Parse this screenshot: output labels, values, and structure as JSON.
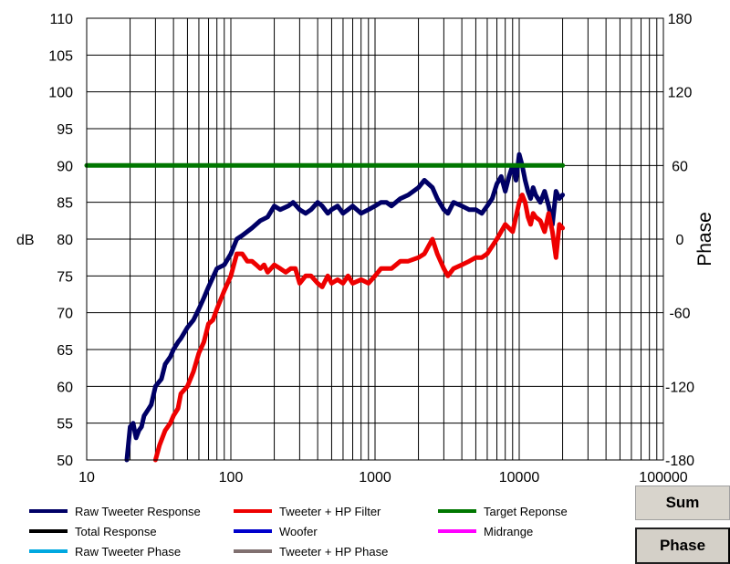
{
  "chart_data": {
    "type": "line",
    "xlabel": "",
    "ylabel": "dB",
    "y2label": "Phase",
    "xscale": "log",
    "xlim": [
      10,
      100000
    ],
    "ylim": [
      50,
      110
    ],
    "y2lim": [
      -180,
      180
    ],
    "grid": true,
    "x_ticks": [
      "10",
      "100",
      "1000",
      "10000",
      "100000"
    ],
    "y_ticks": [
      "50",
      "55",
      "60",
      "65",
      "70",
      "75",
      "80",
      "85",
      "90",
      "95",
      "100",
      "105",
      "110"
    ],
    "y2_ticks": [
      "-180",
      "-120",
      "-60",
      "0",
      "60",
      "120",
      "180"
    ],
    "series": [
      {
        "name": "Raw Tweeter Response",
        "color": "#000066",
        "x": [
          19,
          20,
          21,
          22,
          23,
          24,
          25,
          27,
          28,
          30,
          33,
          35,
          38,
          40,
          43,
          45,
          50,
          55,
          60,
          65,
          70,
          80,
          90,
          100,
          110,
          120,
          140,
          160,
          180,
          200,
          220,
          250,
          270,
          300,
          330,
          360,
          400,
          430,
          470,
          500,
          550,
          600,
          650,
          700,
          800,
          900,
          1000,
          1100,
          1200,
          1300,
          1500,
          1700,
          2000,
          2200,
          2500,
          2700,
          3000,
          3200,
          3500,
          4000,
          4500,
          5000,
          5500,
          6000,
          6500,
          7000,
          7500,
          8000,
          8500,
          9000,
          9500,
          10000,
          10500,
          11000,
          11500,
          12000,
          12500,
          13000,
          14000,
          15000,
          16000,
          17000,
          18000,
          19000,
          20000
        ],
        "y": [
          50,
          54.5,
          55,
          53,
          54,
          54.5,
          56,
          57,
          57.5,
          60,
          61,
          63,
          64,
          65,
          66,
          66.5,
          68,
          69,
          70.5,
          72,
          73.5,
          76,
          76.5,
          78,
          80,
          80.5,
          81.5,
          82.5,
          83,
          84.5,
          84,
          84.5,
          85,
          84,
          83.5,
          84,
          85,
          84.5,
          83.5,
          84,
          84.5,
          83.5,
          84,
          84.5,
          83.5,
          84,
          84.5,
          85,
          85,
          84.5,
          85.5,
          86,
          87,
          88,
          87,
          85.5,
          84,
          83.5,
          85,
          84.5,
          84,
          84,
          83.5,
          84.5,
          85.5,
          87.5,
          88.5,
          86.5,
          88.5,
          90,
          88,
          91.5,
          90,
          88,
          86.5,
          85.5,
          87,
          86,
          85,
          86.5,
          84.5,
          82,
          86.5,
          85.5,
          86
        ]
      },
      {
        "name": "Tweeter + HP Filter",
        "color": "#ee0000",
        "x": [
          30,
          32,
          35,
          38,
          40,
          43,
          45,
          50,
          55,
          60,
          65,
          70,
          75,
          80,
          90,
          100,
          110,
          120,
          130,
          140,
          150,
          160,
          170,
          180,
          200,
          220,
          240,
          260,
          280,
          300,
          330,
          360,
          400,
          430,
          470,
          500,
          550,
          600,
          650,
          700,
          800,
          900,
          1000,
          1100,
          1200,
          1300,
          1500,
          1700,
          2000,
          2200,
          2500,
          2700,
          3000,
          3200,
          3500,
          4000,
          4500,
          5000,
          5500,
          6000,
          7000,
          8000,
          9000,
          10000,
          10500,
          11000,
          11500,
          12000,
          12500,
          13000,
          14000,
          15000,
          16000,
          17000,
          18000,
          19000,
          20000
        ],
        "y": [
          50,
          52,
          54,
          55,
          56,
          57,
          59,
          60,
          62,
          64.5,
          66,
          68.5,
          69,
          70.5,
          73,
          75,
          78,
          78,
          77,
          77,
          76.5,
          76,
          76.5,
          75.5,
          76.5,
          76,
          75.5,
          76,
          76,
          74,
          75,
          75,
          74,
          73.5,
          75,
          74,
          74.5,
          74,
          75,
          74,
          74.5,
          74,
          75,
          76,
          76,
          76,
          77,
          77,
          77.5,
          78,
          80,
          78,
          76,
          75,
          76,
          76.5,
          77,
          77.5,
          77.5,
          78,
          80,
          82,
          81,
          85,
          86,
          85,
          83,
          82,
          83.5,
          83,
          82.5,
          81,
          83.5,
          81,
          77.5,
          82,
          81.5
        ]
      },
      {
        "name": "Target Reponse",
        "color": "#007700",
        "x": [
          10,
          20000
        ],
        "y": [
          90,
          90
        ]
      },
      {
        "name": "Total Response",
        "color": "#000000",
        "x": [],
        "y": []
      },
      {
        "name": "Woofer",
        "color": "#0000cc",
        "x": [],
        "y": []
      },
      {
        "name": "Midrange",
        "color": "#ff00ff",
        "x": [],
        "y": []
      },
      {
        "name": "Raw Tweeter Phase",
        "color": "#00a8e0",
        "x": [],
        "y": []
      },
      {
        "name": "Tweeter + HP Phase",
        "color": "#807070",
        "x": [],
        "y": []
      }
    ]
  },
  "buttons": {
    "sum": "Sum",
    "phase": "Phase"
  }
}
